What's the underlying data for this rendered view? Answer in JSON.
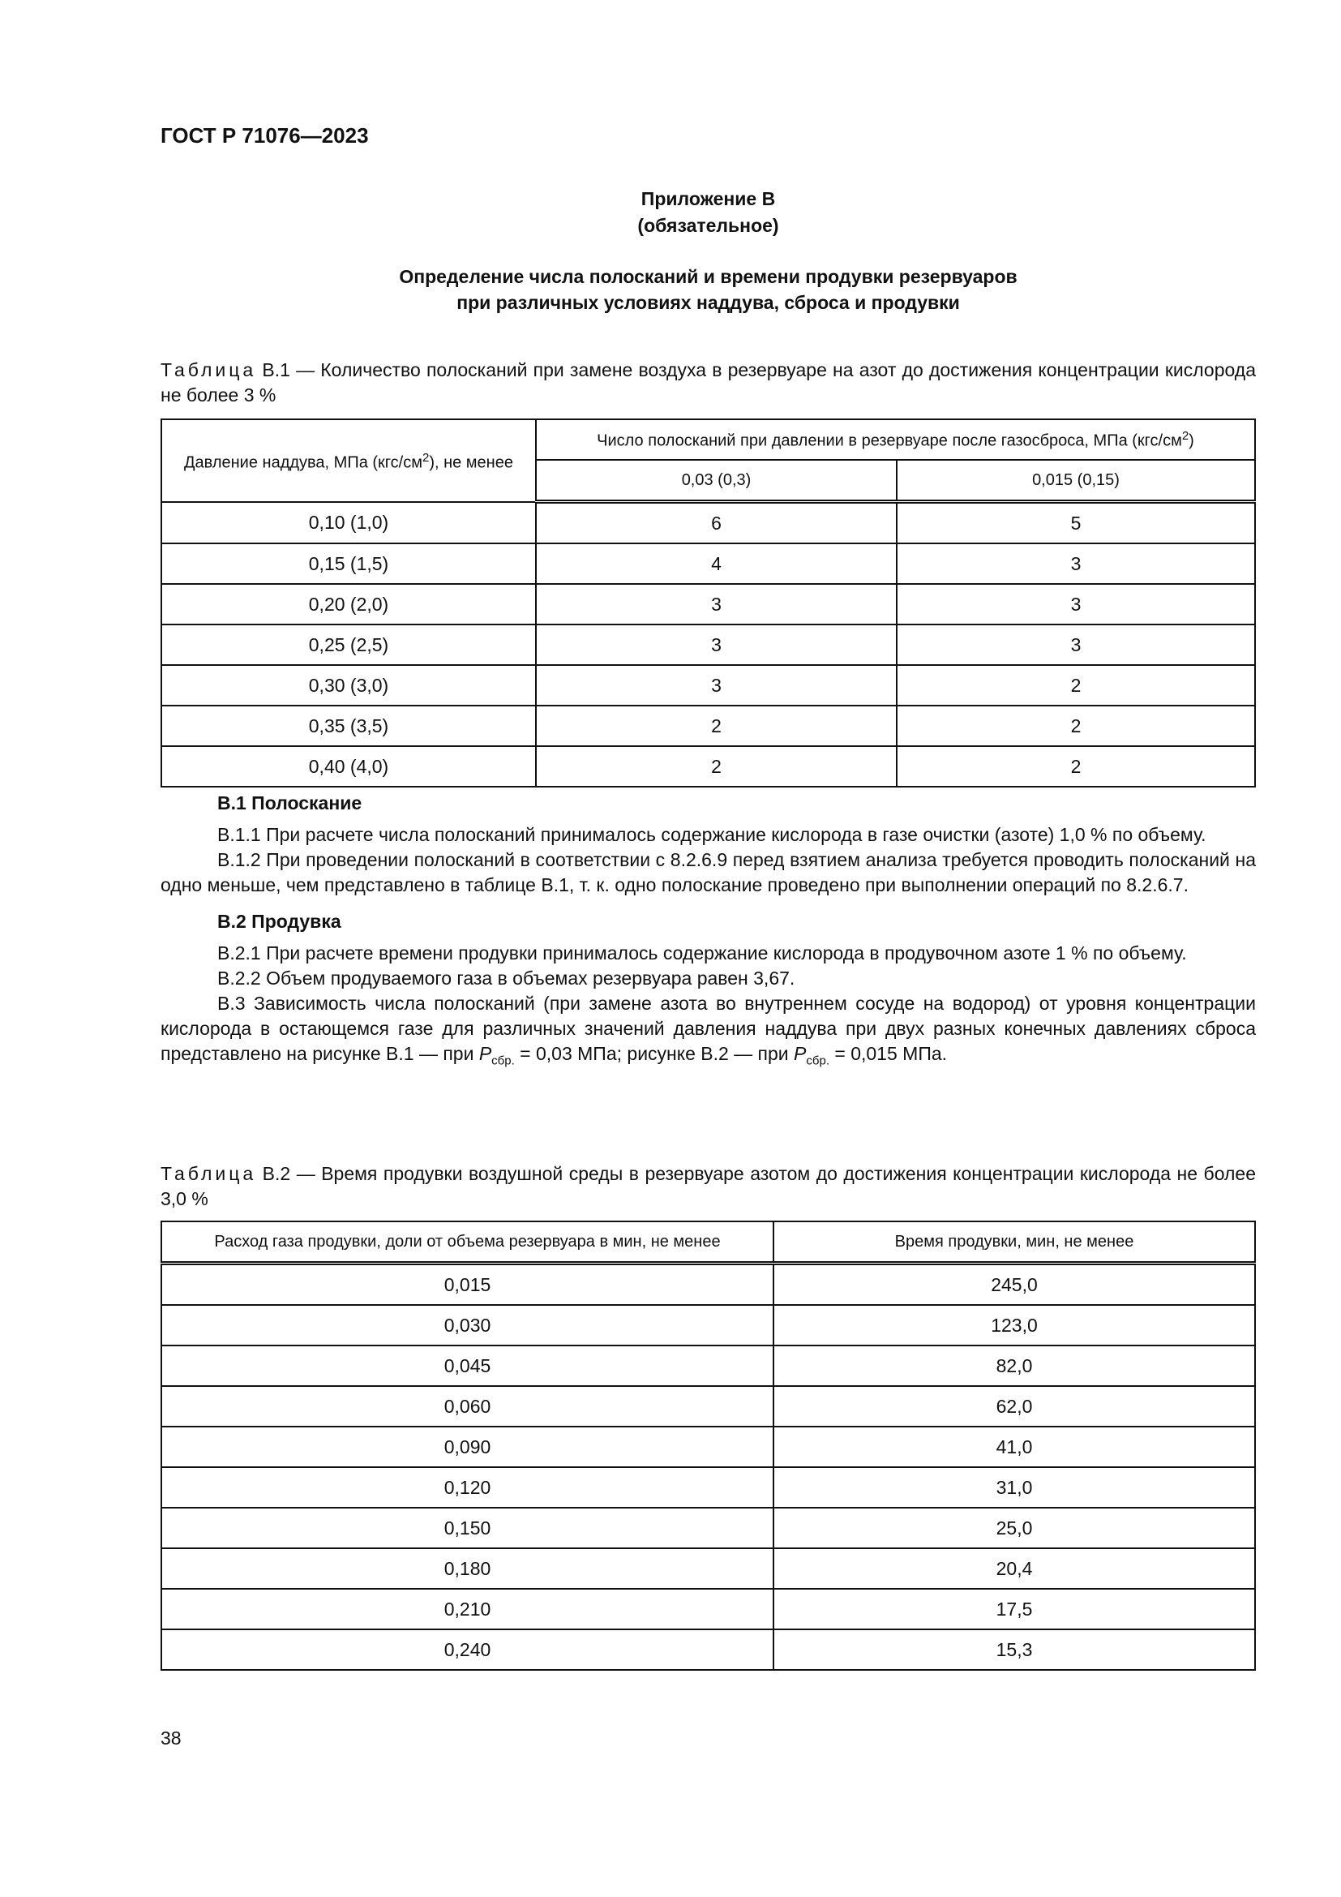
{
  "header": {
    "standard": "ГОСТ Р 71076—2023"
  },
  "appendix": {
    "title": "Приложение В",
    "status": "(обязательное)",
    "heading_line1": "Определение числа полосканий и времени продувки резервуаров",
    "heading_line2": "при различных условиях наддува, сброса и продувки"
  },
  "table1": {
    "label": "Таблица",
    "caption": " В.1 — Количество полосканий при замене воздуха в резервуаре на азот до достижения концентрации кислорода не более 3 %",
    "col1_header": "Давление наддува, МПа (кгс/см",
    "col1_header_tail": "), не менее",
    "sup": "2",
    "group_header": "Число полосканий при давлении в резервуаре после газосброса,  МПа (кгс/см",
    "group_header_tail": ")",
    "sub_headers": [
      "0,03 (0,3)",
      "0,015 (0,15)"
    ],
    "rows": [
      [
        "0,10 (1,0)",
        "6",
        "5"
      ],
      [
        "0,15 (1,5)",
        "4",
        "3"
      ],
      [
        "0,20 (2,0)",
        "3",
        "3"
      ],
      [
        "0,25 (2,5)",
        "3",
        "3"
      ],
      [
        "0,30 (3,0)",
        "3",
        "2"
      ],
      [
        "0,35 (3,5)",
        "2",
        "2"
      ],
      [
        "0,40 (4,0)",
        "2",
        "2"
      ]
    ]
  },
  "sections": {
    "b1_heading": "В.1 Полоскание",
    "b1_1": "В.1.1 При расчете числа полосканий принималось содержание кислорода в газе очистки (азоте) 1,0  % по объему.",
    "b1_2": "В.1.2 При проведении полосканий в соответствии с 8.2.6.9 перед взятием анализа требуется проводить полосканий на одно меньше, чем представлено в таблице В.1, т. к. одно полоскание проведено при выполнении операций по 8.2.6.7.",
    "b2_heading": "В.2 Продувка",
    "b2_1": "В.2.1 При расчете времени продувки принималось содержание кислорода в продувочном азоте 1 % по объему.",
    "b2_2": "В.2.2 Объем продуваемого газа в объемах резервуара равен 3,67.",
    "b3_part1": "В.3 Зависимость числа полосканий (при замене азота во внутреннем сосуде на водород) от уровня концентрации кислорода в остающемся газе для различных значений давления наддува при двух разных конечных давлениях сброса представлено на рисунке В.1 — при ",
    "p_symbol": "P",
    "p_sub": "сбр.",
    "b3_part2": " = 0,03  МПа; рисунке В.2 — при ",
    "b3_part3": " = 0,015  МПа."
  },
  "table2": {
    "label": "Таблица",
    "caption": " В.2 — Время продувки воздушной среды в резервуаре азотом до достижения концентрации кислорода не более 3,0 %",
    "headers": [
      "Расход газа продувки, доли от объема резервуара в мин, не менее",
      "Время продувки, мин, не менее"
    ],
    "rows": [
      [
        "0,015",
        "245,0"
      ],
      [
        "0,030",
        "123,0"
      ],
      [
        "0,045",
        "82,0"
      ],
      [
        "0,060",
        "62,0"
      ],
      [
        "0,090",
        "41,0"
      ],
      [
        "0,120",
        "31,0"
      ],
      [
        "0,150",
        "25,0"
      ],
      [
        "0,180",
        "20,4"
      ],
      [
        "0,210",
        "17,5"
      ],
      [
        "0,240",
        "15,3"
      ]
    ]
  },
  "footer": {
    "page_number": "38"
  }
}
